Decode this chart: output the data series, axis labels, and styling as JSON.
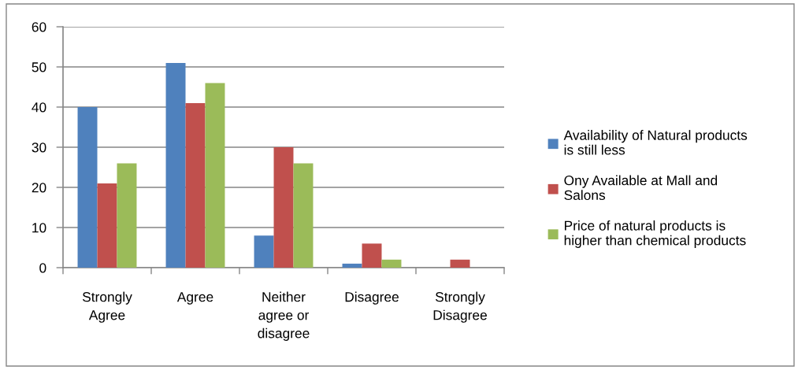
{
  "chart_data": {
    "type": "bar",
    "categories": [
      "Strongly\nAgree",
      "Agree",
      "Neither\nagree or\ndisagree",
      "Disagree",
      "Strongly\nDisagree"
    ],
    "series": [
      {
        "name": "Availability of Natural products\nis still less",
        "color": "#4f81bd",
        "values": [
          40,
          51,
          8,
          1,
          null
        ]
      },
      {
        "name": "Ony Available at Mall and\nSalons",
        "color": "#c0504d",
        "values": [
          21,
          41,
          30,
          6,
          2
        ]
      },
      {
        "name": "Price of natural products is\nhigher than chemical products",
        "color": "#9bbb59",
        "values": [
          26,
          46,
          26,
          2,
          null
        ]
      }
    ],
    "ylim": [
      0,
      60
    ],
    "yticks": [
      0,
      10,
      20,
      30,
      40,
      50,
      60
    ],
    "grid": "y",
    "legend": "right"
  }
}
